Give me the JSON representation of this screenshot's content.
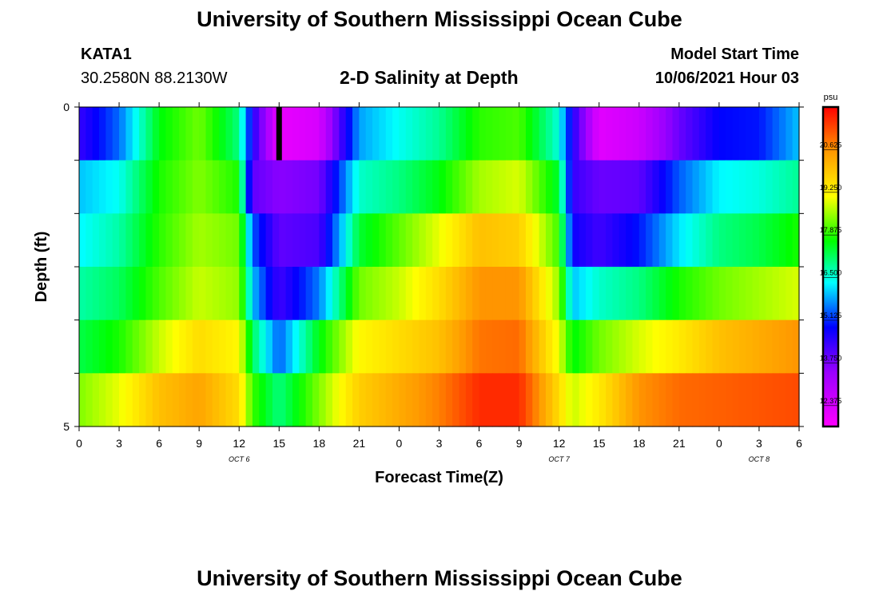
{
  "header": {
    "title": "University of Southern Mississippi Ocean Cube",
    "station": "KATA1",
    "location": "30.2580N  88.2130W",
    "subtitle": "2-D Salinity at Depth",
    "start_label": "Model Start Time",
    "start_value": "10/06/2021 Hour 03"
  },
  "footer": {
    "title": "University of Southern Mississippi Ocean Cube"
  },
  "chart_data": {
    "type": "heatmap",
    "title": "2-D Salinity at Depth",
    "xlabel": "Forecast Time(Z)",
    "ylabel": "Depth (ft)",
    "x_ticks": [
      "0",
      "3",
      "6",
      "9",
      "12",
      "15",
      "18",
      "21",
      "0",
      "3",
      "6",
      "9",
      "12",
      "15",
      "18",
      "21",
      "0",
      "3",
      "6"
    ],
    "x_hours": [
      0,
      3,
      6,
      9,
      12,
      15,
      18,
      21,
      24,
      27,
      30,
      33,
      36,
      39,
      42,
      45,
      48,
      51,
      54
    ],
    "xlim": [
      0,
      54
    ],
    "y_ticks": [
      "0",
      "5"
    ],
    "ylim": [
      0,
      5
    ],
    "date_labels": [
      {
        "text": "OCT 6",
        "hour": 12
      },
      {
        "text": "OCT 7",
        "hour": 36
      },
      {
        "text": "OCT 8",
        "hour": 51
      }
    ],
    "current_time_marker_hour": 15,
    "colorbar": {
      "unit": "psu",
      "min": 11.7,
      "max": 22.0,
      "ticks": [
        "20.625",
        "19.250",
        "17.875",
        "16.500",
        "15.125",
        "13.750",
        "12.375"
      ],
      "tick_values": [
        20.625,
        19.25,
        17.875,
        16.5,
        15.125,
        13.75,
        12.375
      ]
    },
    "hours": [
      0,
      3,
      6,
      9,
      12,
      13,
      15,
      18,
      21,
      24,
      27,
      30,
      33,
      36,
      37,
      39,
      42,
      45,
      48,
      51,
      54
    ],
    "salinity_rows": [
      [
        14.4,
        15.5,
        17.6,
        18.3,
        17.0,
        14.6,
        12.1,
        12.4,
        15.8,
        16.4,
        16.9,
        17.9,
        18.1,
        16.5,
        14.6,
        12.2,
        12.6,
        13.9,
        14.9,
        15.0,
        16.0
      ],
      [
        16.0,
        16.4,
        17.8,
        18.4,
        17.8,
        14.0,
        13.6,
        13.8,
        16.6,
        17.0,
        17.6,
        18.6,
        18.9,
        17.4,
        14.4,
        13.9,
        14.0,
        15.4,
        16.3,
        16.5,
        16.9
      ],
      [
        16.3,
        16.8,
        17.9,
        18.6,
        18.3,
        15.4,
        14.0,
        14.2,
        17.4,
        18.2,
        19.0,
        20.0,
        19.8,
        18.0,
        14.8,
        14.3,
        15.0,
        16.2,
        17.0,
        17.3,
        17.8
      ],
      [
        16.8,
        17.2,
        18.1,
        18.8,
        18.5,
        16.0,
        14.3,
        15.6,
        18.3,
        18.8,
        19.6,
        20.6,
        20.6,
        18.5,
        16.0,
        16.6,
        17.0,
        17.8,
        18.3,
        18.6,
        18.9
      ],
      [
        17.3,
        17.8,
        18.8,
        19.6,
        19.2,
        17.2,
        15.4,
        17.6,
        19.2,
        19.6,
        20.0,
        20.9,
        21.0,
        19.0,
        17.6,
        18.3,
        18.9,
        19.4,
        20.0,
        20.3,
        20.6
      ],
      [
        18.4,
        19.0,
        20.0,
        20.4,
        19.6,
        18.0,
        17.0,
        18.4,
        19.8,
        20.3,
        20.8,
        21.6,
        21.6,
        19.6,
        18.8,
        19.4,
        20.6,
        21.0,
        21.1,
        21.2,
        21.3
      ]
    ]
  }
}
